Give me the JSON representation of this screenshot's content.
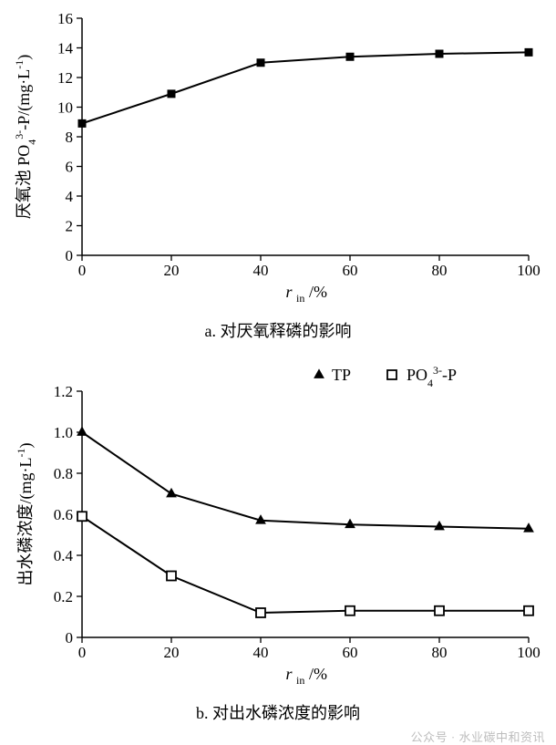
{
  "chart_a": {
    "type": "line",
    "x": [
      0,
      20,
      40,
      60,
      80,
      100
    ],
    "y": [
      8.9,
      10.9,
      13.0,
      13.4,
      13.6,
      13.7
    ],
    "line_color": "#000000",
    "line_width": 2,
    "marker": "square-filled",
    "marker_size": 8,
    "marker_color": "#000000",
    "xlim": [
      0,
      100
    ],
    "ylim": [
      0,
      16
    ],
    "xticks": [
      0,
      20,
      40,
      60,
      80,
      100
    ],
    "yticks": [
      0,
      2,
      4,
      6,
      8,
      10,
      12,
      14,
      16
    ],
    "xlabel_plain": "r",
    "xlabel_sub": "in",
    "xlabel_suffix": "/%",
    "ylabel_prefix": "厌氧池 PO",
    "ylabel_sub": "4",
    "ylabel_super": "3-",
    "ylabel_mid": "-P/(mg·L",
    "ylabel_exp": "-1",
    "ylabel_close": ")",
    "tick_fontsize": 17,
    "label_fontsize": 18,
    "axis_color": "#000000",
    "axis_width": 1.5,
    "tick_len": 6,
    "caption": "a. 对厌氧释磷的影响"
  },
  "chart_b": {
    "type": "line",
    "x": [
      0,
      20,
      40,
      60,
      80,
      100
    ],
    "series": [
      {
        "name": "TP",
        "y": [
          1.0,
          0.7,
          0.57,
          0.55,
          0.54,
          0.53
        ],
        "marker": "triangle-filled",
        "marker_size": 9,
        "color": "#000000",
        "line_width": 2,
        "legend_label": "TP"
      },
      {
        "name": "PO4-P",
        "y": [
          0.59,
          0.3,
          0.12,
          0.13,
          0.13,
          0.13
        ],
        "marker": "square-open",
        "marker_size": 10,
        "color": "#000000",
        "line_width": 2,
        "legend_label_prefix": "PO",
        "legend_label_sub": "4",
        "legend_label_super": "3-",
        "legend_label_suffix": "-P"
      }
    ],
    "xlim": [
      0,
      100
    ],
    "ylim": [
      0,
      1.2
    ],
    "xticks": [
      0,
      20,
      40,
      60,
      80,
      100
    ],
    "yticks": [
      0,
      0.2,
      0.4,
      0.6,
      0.8,
      1.0,
      1.2
    ],
    "xlabel_plain": "r",
    "xlabel_sub": "in",
    "xlabel_suffix": "/%",
    "ylabel_prefix": "出水磷浓度/(mg·L",
    "ylabel_exp": "-1",
    "ylabel_close": ")",
    "tick_fontsize": 17,
    "label_fontsize": 18,
    "axis_color": "#000000",
    "axis_width": 1.5,
    "tick_len": 6,
    "caption": "b. 对出水磷浓度的影响"
  },
  "watermark": "公众号 · 水业碳中和资讯"
}
